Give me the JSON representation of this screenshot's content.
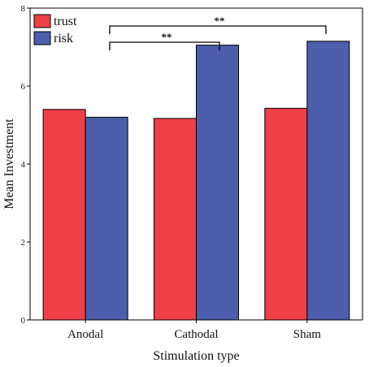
{
  "chart_data": {
    "type": "bar",
    "categories": [
      "Anodal",
      "Cathodal",
      "Sham"
    ],
    "series": [
      {
        "name": "trust",
        "values": [
          5.4,
          5.17,
          5.43
        ],
        "color": "#ef4048"
      },
      {
        "name": "risk",
        "values": [
          5.2,
          7.05,
          7.15
        ],
        "color": "#4c5eab"
      }
    ],
    "xlabel": "Stimulation type",
    "ylabel": "Mean Investment",
    "ylim": [
      0,
      8
    ],
    "yticks": [
      0,
      2,
      4,
      6,
      8
    ],
    "grid": false,
    "legend_position": "top-left",
    "significance": [
      {
        "from_category": 0,
        "to_category": 1,
        "series": "risk",
        "label": "**"
      },
      {
        "from_category": 0,
        "to_category": 2,
        "series": "risk",
        "label": "**"
      }
    ]
  }
}
